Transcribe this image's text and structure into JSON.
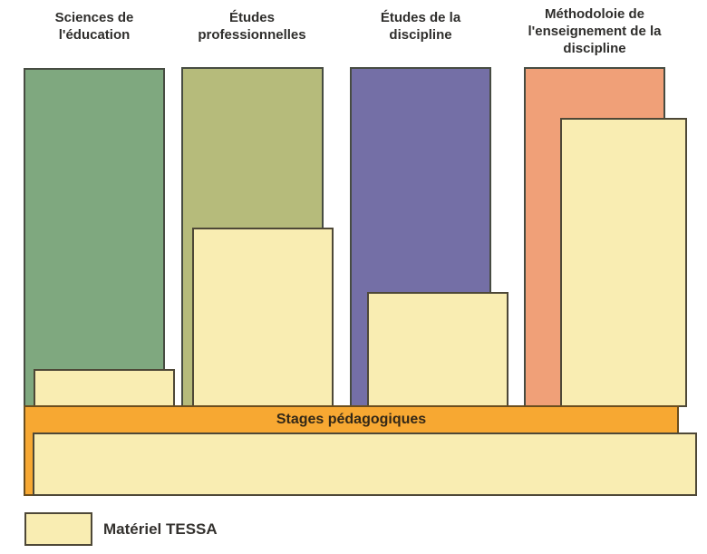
{
  "colors": {
    "green": "#7fa87f",
    "olive": "#b6bb7b",
    "purple": "#746fa6",
    "salmon": "#f0a078",
    "cream": "#f9edb2",
    "orange": "#f7a832"
  },
  "columns": [
    {
      "label": "Sciences de l'éducation",
      "color_key": "green"
    },
    {
      "label": "Études professionnelles",
      "color_key": "olive"
    },
    {
      "label": "Études de la discipline",
      "color_key": "purple"
    },
    {
      "label": "Méthodoloie de l'enseignement de la discipline",
      "color_key": "salmon"
    }
  ],
  "stages_bar": {
    "label": "Stages pédagogiques"
  },
  "legend": {
    "label": "Matériel TESSA"
  }
}
